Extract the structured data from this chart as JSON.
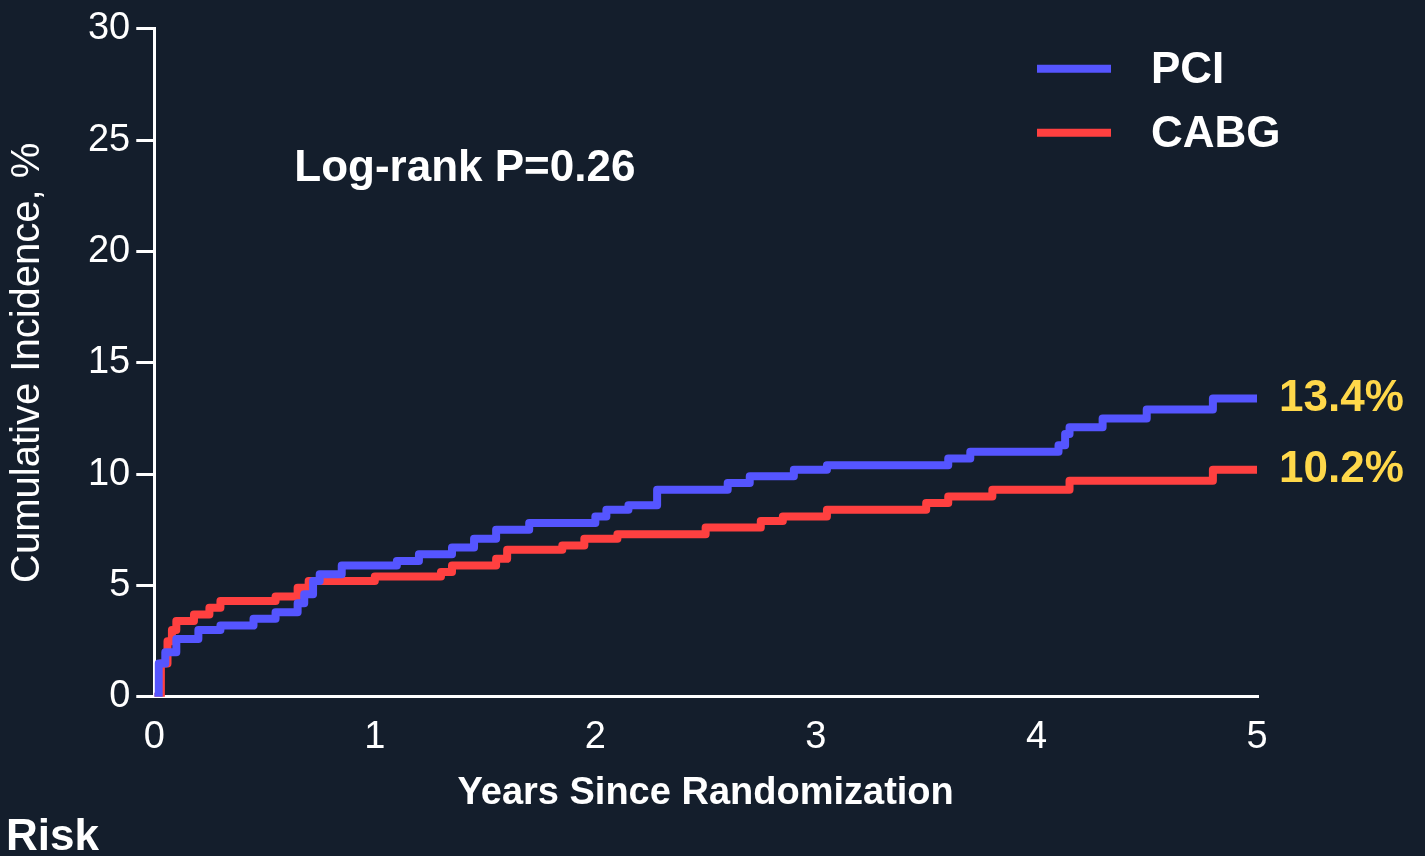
{
  "chart_data": {
    "type": "step",
    "xlabel": "Years Since Randomization",
    "ylabel": "Cumulative Incidence, %",
    "xlim": [
      0,
      5
    ],
    "xticks": [
      0,
      1,
      2,
      3,
      4,
      5
    ],
    "ylim": [
      0,
      30
    ],
    "yticks": [
      0,
      5,
      10,
      15,
      20,
      25,
      30
    ],
    "grid": false,
    "legend": "top right",
    "marker": "none",
    "line_style": "solid",
    "annotations": [
      "Log-rank P=0.26",
      "Risk",
      {
        "text": "13.4%",
        "x": 5,
        "y": 13.4
      },
      {
        "text": "10.2%",
        "x": 5,
        "y": 10.2
      }
    ],
    "series": [
      {
        "name": "PCI",
        "color": "#5555ff",
        "x": [
          0,
          0.02,
          0.05,
          0.1,
          0.2,
          0.3,
          0.45,
          0.55,
          0.65,
          0.68,
          0.72,
          0.75,
          0.85,
          1.1,
          1.2,
          1.35,
          1.45,
          1.55,
          1.7,
          2.0,
          2.05,
          2.15,
          2.28,
          2.6,
          2.7,
          2.9,
          3.05,
          3.6,
          3.7,
          4.1,
          4.13,
          4.15,
          4.3,
          4.5,
          4.8,
          5.0
        ],
        "values": [
          0,
          1.5,
          2.0,
          2.6,
          3.0,
          3.2,
          3.5,
          3.8,
          4.2,
          4.6,
          5.2,
          5.5,
          5.9,
          6.1,
          6.4,
          6.7,
          7.1,
          7.5,
          7.8,
          8.1,
          8.4,
          8.6,
          9.3,
          9.6,
          9.9,
          10.2,
          10.4,
          10.7,
          11.0,
          11.3,
          11.8,
          12.1,
          12.5,
          12.9,
          13.4,
          13.4
        ]
      },
      {
        "name": "CABG",
        "color": "#ff4040",
        "x": [
          0,
          0.03,
          0.06,
          0.08,
          0.1,
          0.18,
          0.25,
          0.3,
          0.55,
          0.65,
          0.7,
          1.0,
          1.3,
          1.35,
          1.55,
          1.6,
          1.85,
          1.95,
          2.1,
          2.5,
          2.75,
          2.85,
          3.05,
          3.5,
          3.6,
          3.8,
          4.15,
          4.8,
          5.0
        ],
        "values": [
          0,
          1.5,
          2.5,
          3.0,
          3.4,
          3.7,
          4.0,
          4.3,
          4.5,
          4.9,
          5.2,
          5.4,
          5.6,
          5.9,
          6.2,
          6.6,
          6.8,
          7.1,
          7.3,
          7.6,
          7.9,
          8.1,
          8.4,
          8.7,
          9.0,
          9.3,
          9.7,
          10.2,
          10.2
        ]
      }
    ]
  }
}
